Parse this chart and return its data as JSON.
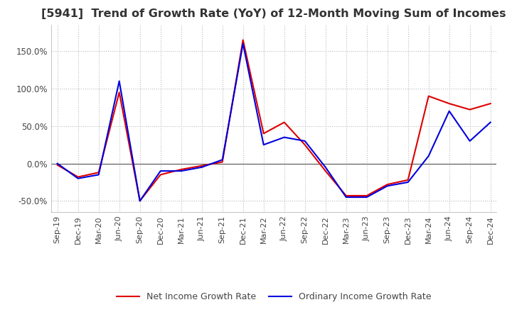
{
  "title": "[5941]  Trend of Growth Rate (YoY) of 12-Month Moving Sum of Incomes",
  "title_fontsize": 11.5,
  "x_labels": [
    "Sep-19",
    "Dec-19",
    "Mar-20",
    "Jun-20",
    "Sep-20",
    "Dec-20",
    "Mar-21",
    "Jun-21",
    "Sep-21",
    "Dec-21",
    "Mar-22",
    "Jun-22",
    "Sep-22",
    "Dec-22",
    "Mar-23",
    "Jun-23",
    "Sep-23",
    "Dec-23",
    "Mar-24",
    "Jun-24",
    "Sep-24",
    "Dec-24"
  ],
  "ordinary_income": [
    0,
    -20,
    -15,
    110,
    -50,
    -10,
    -10,
    -5,
    5,
    160,
    25,
    35,
    30,
    -5,
    -45,
    -45,
    -30,
    -25,
    10,
    70,
    30,
    55
  ],
  "net_income": [
    -2,
    -18,
    -12,
    95,
    -50,
    -15,
    -8,
    -3,
    2,
    165,
    40,
    55,
    25,
    -10,
    -43,
    -43,
    -28,
    -22,
    90,
    80,
    72,
    80
  ],
  "ylim": [
    -65,
    185
  ],
  "yticks": [
    -50,
    0,
    50,
    100,
    150
  ],
  "ordinary_color": "#0000dd",
  "net_color": "#dd0000",
  "legend_ordinary": "Ordinary Income Growth Rate",
  "legend_net": "Net Income Growth Rate",
  "grid_color": "#bbbbbb",
  "grid_style": "dotted",
  "background_color": "#ffffff",
  "zero_line_color": "#555555"
}
